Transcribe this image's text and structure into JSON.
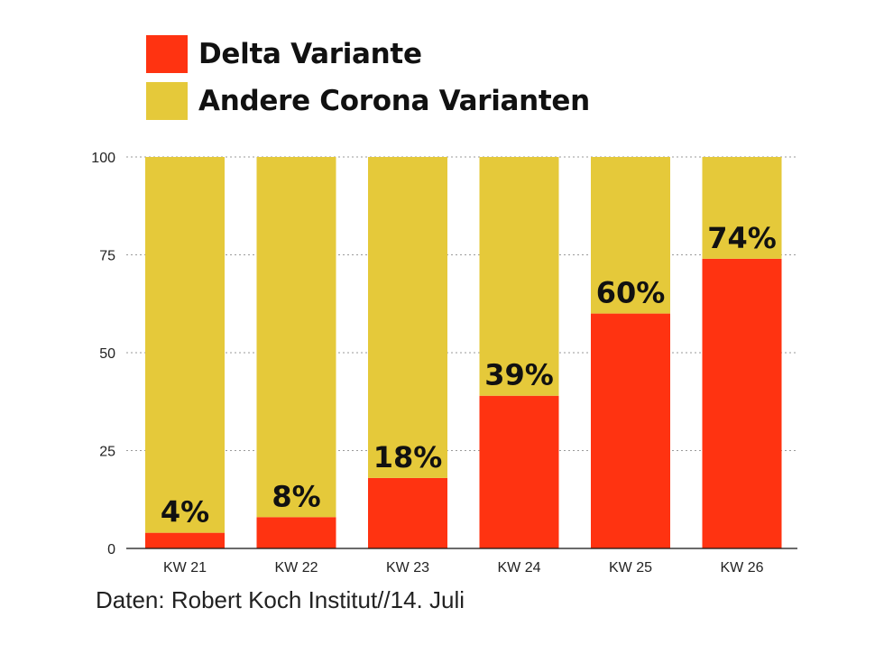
{
  "legend": {
    "items": [
      {
        "label": "Delta Variante",
        "color": "#ff3311"
      },
      {
        "label": "Andere Corona Varianten",
        "color": "#e5c93a"
      }
    ]
  },
  "source_note": "Daten: Robert Koch Institut//14. Juli",
  "chart_data": {
    "type": "bar",
    "stacked": true,
    "categories": [
      "KW 21",
      "KW 22",
      "KW 23",
      "KW 24",
      "KW 25",
      "KW 26"
    ],
    "series": [
      {
        "name": "Delta Variante",
        "color": "#ff3311",
        "values": [
          4,
          8,
          18,
          39,
          60,
          74
        ]
      },
      {
        "name": "Andere Corona Varianten",
        "color": "#e5c93a",
        "values": [
          96,
          92,
          82,
          61,
          40,
          26
        ]
      }
    ],
    "data_labels": [
      "4%",
      "8%",
      "18%",
      "39%",
      "60%",
      "74%"
    ],
    "ylim": [
      0,
      100
    ],
    "yticks": [
      0,
      25,
      50,
      75,
      100
    ],
    "grid": true,
    "legend_position": "top-left"
  }
}
